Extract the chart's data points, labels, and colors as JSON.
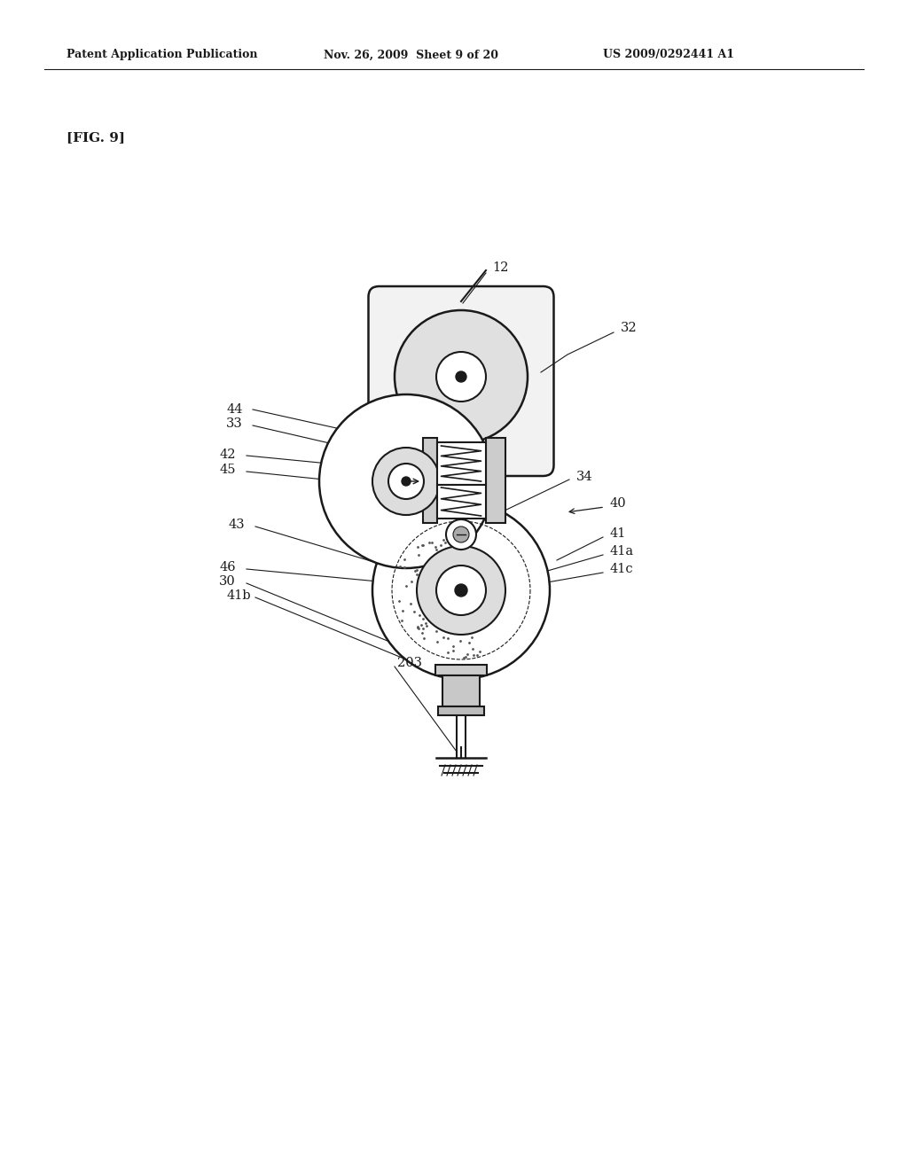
{
  "bg_color": "#ffffff",
  "header_text": "Patent Application Publication",
  "header_date": "Nov. 26, 2009  Sheet 9 of 20",
  "header_patent": "US 2009/0292441 A1",
  "fig_label": "[FIG. 9]",
  "lbl_fs": 10.5
}
